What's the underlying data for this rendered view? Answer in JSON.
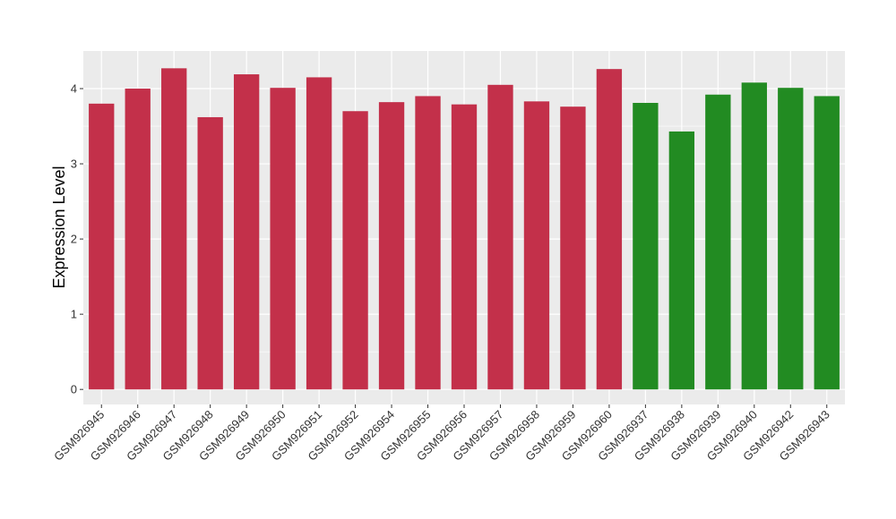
{
  "chart_data": {
    "type": "bar",
    "title": "",
    "xlabel": "",
    "ylabel": "Expression Level",
    "ylim": [
      -0.2,
      4.5
    ],
    "yticks": [
      0,
      1,
      2,
      3,
      4
    ],
    "grid": true,
    "legend": "none",
    "categories": [
      "GSM926945",
      "GSM926946",
      "GSM926947",
      "GSM926948",
      "GSM926949",
      "GSM926950",
      "GSM926951",
      "GSM926952",
      "GSM926954",
      "GSM926955",
      "GSM926956",
      "GSM926957",
      "GSM926958",
      "GSM926959",
      "GSM926960",
      "GSM926937",
      "GSM926938",
      "GSM926939",
      "GSM926940",
      "GSM926942",
      "GSM926943"
    ],
    "values": [
      3.8,
      4.0,
      4.27,
      3.62,
      4.19,
      4.01,
      4.15,
      3.7,
      3.82,
      3.9,
      3.79,
      4.05,
      3.83,
      3.76,
      4.26,
      3.81,
      3.43,
      3.92,
      4.08,
      4.01,
      3.9
    ],
    "bar_colors": [
      "#c3304a",
      "#c3304a",
      "#c3304a",
      "#c3304a",
      "#c3304a",
      "#c3304a",
      "#c3304a",
      "#c3304a",
      "#c3304a",
      "#c3304a",
      "#c3304a",
      "#c3304a",
      "#c3304a",
      "#c3304a",
      "#c3304a",
      "#228b22",
      "#228b22",
      "#228b22",
      "#228b22",
      "#228b22",
      "#228b22"
    ],
    "panel_color": "#ebebeb",
    "grid_color": "#ffffff"
  }
}
